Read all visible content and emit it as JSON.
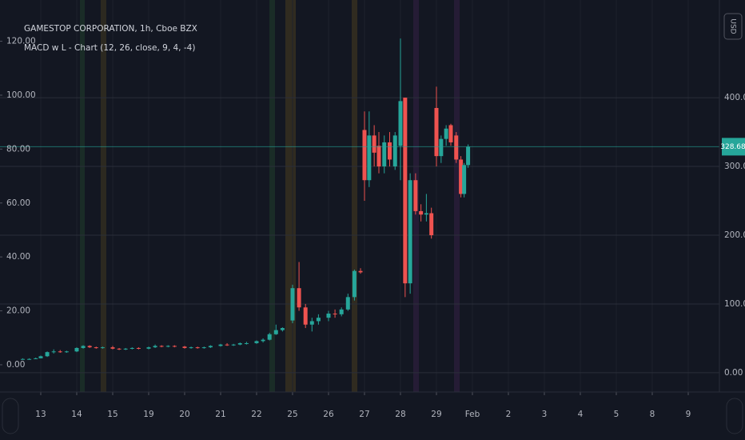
{
  "chart_data": {
    "type": "candlestick",
    "title": "GAMESTOP CORPORATION, 1h, Cboe BZX",
    "subtitle": "MACD w L - Chart (12, 26, close, 9, 4, -4)",
    "currency": "USD",
    "up_color": "#26a69a",
    "down_color": "#ef5350",
    "grid": true,
    "xlim": [
      -1.133,
      18.867
    ],
    "xticks": [
      {
        "value": 0,
        "label": "13"
      },
      {
        "value": 1,
        "label": "14"
      },
      {
        "value": 2,
        "label": "15"
      },
      {
        "value": 3,
        "label": "19"
      },
      {
        "value": 4,
        "label": "20"
      },
      {
        "value": 5,
        "label": "21"
      },
      {
        "value": 6,
        "label": "22"
      },
      {
        "value": 7,
        "label": "25"
      },
      {
        "value": 8,
        "label": "26"
      },
      {
        "value": 9,
        "label": "27"
      },
      {
        "value": 10,
        "label": "28"
      },
      {
        "value": 11,
        "label": "29"
      },
      {
        "value": 12,
        "label": "Feb"
      },
      {
        "value": 13,
        "label": "2"
      },
      {
        "value": 14,
        "label": "3"
      },
      {
        "value": 15,
        "label": "4"
      },
      {
        "value": 16,
        "label": "5"
      },
      {
        "value": 17,
        "label": "8"
      },
      {
        "value": 18,
        "label": "9"
      }
    ],
    "ylim": [
      -28,
      542
    ],
    "yticks": [
      {
        "value": 0,
        "label": "0.00"
      },
      {
        "value": 100,
        "label": "100.00"
      },
      {
        "value": 200,
        "label": "200.00"
      },
      {
        "value": 300,
        "label": "300.00"
      },
      {
        "value": 400,
        "label": "400.00"
      }
    ],
    "y2lim": [
      -10.1,
      135.3
    ],
    "y2ticks": [
      {
        "value": 0,
        "label": "0.00"
      },
      {
        "value": 20,
        "label": "20.00"
      },
      {
        "value": 40,
        "label": "40.00"
      },
      {
        "value": 60,
        "label": "60.00"
      },
      {
        "value": 80,
        "label": "80.00"
      },
      {
        "value": 100,
        "label": "100.00"
      },
      {
        "value": 120,
        "label": "120.00"
      }
    ],
    "x": [
      -0.5,
      -0.32,
      -0.14,
      0,
      0.18,
      0.36,
      0.54,
      0.72,
      1,
      1.18,
      1.36,
      1.54,
      1.72,
      2,
      2.18,
      2.36,
      2.54,
      2.72,
      3,
      3.18,
      3.36,
      3.54,
      3.72,
      4,
      4.18,
      4.36,
      4.54,
      4.72,
      5,
      5.18,
      5.36,
      5.54,
      5.72,
      6,
      6.18,
      6.36,
      6.54,
      6.72,
      7,
      7.18,
      7.36,
      7.54,
      7.72,
      8,
      8.18,
      8.36,
      8.54,
      8.72,
      8.89,
      9,
      9.13,
      9.27,
      9.4,
      9.55,
      9.7,
      9.85,
      10,
      10.13,
      10.27,
      10.42,
      10.57,
      10.72,
      10.86,
      11,
      11.13,
      11.27,
      11.4,
      11.55,
      11.68,
      11.77,
      11.88
    ],
    "open": [
      20,
      20,
      20,
      21,
      24,
      30,
      31,
      30,
      31,
      36,
      39,
      37,
      36,
      37,
      35,
      34,
      35,
      36,
      35,
      37,
      39,
      38,
      39,
      38,
      36,
      37,
      36,
      37,
      39,
      41,
      40,
      41,
      43,
      43,
      46,
      48,
      56,
      62,
      76,
      123,
      95,
      70,
      75,
      80,
      86,
      85,
      92,
      110,
      148,
      353,
      280,
      345,
      330,
      300,
      335,
      300,
      330,
      400,
      130,
      280,
      235,
      230,
      232,
      385,
      315,
      340,
      360,
      345,
      310,
      260,
      302
    ],
    "high": [
      21,
      21,
      22,
      25,
      31,
      34,
      33,
      32,
      37,
      40,
      40,
      38,
      38,
      39,
      36,
      36,
      37,
      37,
      38,
      41,
      40,
      40,
      40,
      39,
      38,
      38,
      38,
      40,
      42,
      43,
      42,
      44,
      45,
      47,
      50,
      58,
      70,
      66,
      128,
      161,
      100,
      80,
      85,
      90,
      92,
      95,
      115,
      150,
      152,
      380,
      380,
      360,
      350,
      345,
      350,
      350,
      486,
      400,
      290,
      290,
      245,
      260,
      240,
      416,
      345,
      360,
      362,
      350,
      315,
      305,
      332
    ],
    "low": [
      19,
      19,
      20,
      21,
      23,
      28,
      29,
      29,
      30,
      35,
      36,
      35,
      35,
      34,
      33,
      33,
      34,
      34,
      34,
      36,
      37,
      37,
      37,
      35,
      35,
      35,
      35,
      36,
      38,
      39,
      39,
      40,
      41,
      42,
      44,
      47,
      55,
      60,
      72,
      90,
      65,
      60,
      70,
      75,
      80,
      82,
      90,
      105,
      144,
      250,
      270,
      300,
      290,
      290,
      300,
      295,
      280,
      110,
      115,
      230,
      220,
      220,
      195,
      300,
      305,
      330,
      330,
      305,
      255,
      255,
      298
    ],
    "close": [
      20,
      20,
      21,
      24,
      30,
      31,
      30,
      31,
      36,
      39,
      37,
      36,
      37,
      35,
      34,
      35,
      36,
      35,
      37,
      39,
      38,
      39,
      38,
      36,
      37,
      36,
      37,
      39,
      41,
      40,
      41,
      43,
      43,
      46,
      48,
      56,
      62,
      65,
      123,
      95,
      70,
      75,
      80,
      86,
      85,
      92,
      110,
      148,
      146,
      280,
      345,
      320,
      300,
      335,
      310,
      345,
      395,
      130,
      280,
      235,
      230,
      232,
      200,
      315,
      340,
      355,
      335,
      310,
      260,
      302,
      328.68
    ]
  }
}
